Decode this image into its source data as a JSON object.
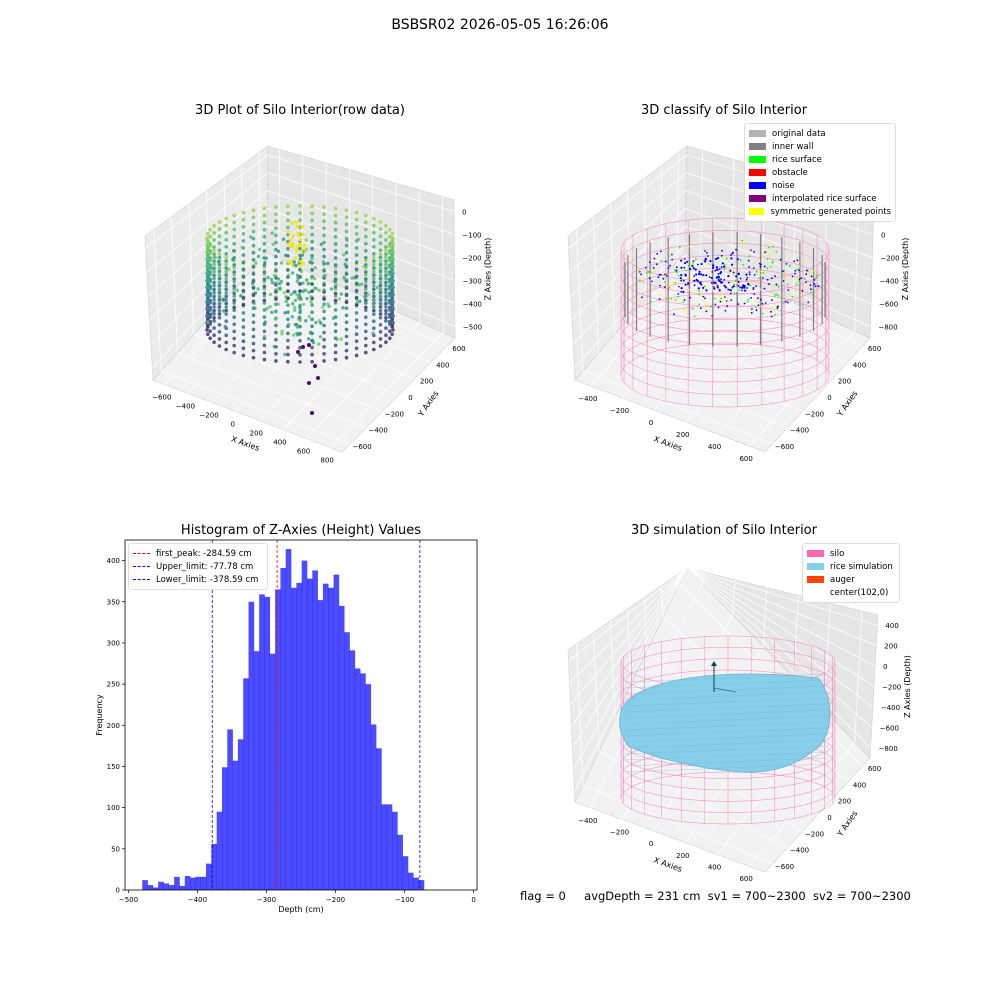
{
  "figure": {
    "suptitle": "BSBSR02 2026-05-05 16:26:06"
  },
  "chart_data": [
    {
      "type": "scatter",
      "title": "3D Plot of Silo Interior(row data)",
      "xlabel": "X Axies",
      "ylabel": "Y Axies",
      "zlabel": "Z Axies (Depth)",
      "x_ticks": [
        "−600",
        "−400",
        "−200",
        "0",
        "200",
        "400",
        "600",
        "800"
      ],
      "y_ticks": [
        "600",
        "400",
        "200",
        "0",
        "−200",
        "−400",
        "−600"
      ],
      "z_ticks": [
        "0",
        "−100",
        "−200",
        "−300",
        "−400",
        "−500"
      ],
      "xlim": [
        -600,
        800
      ],
      "ylim": [
        -650,
        650
      ],
      "zlim": [
        -520,
        20
      ],
      "colormap": "viridis"
    },
    {
      "type": "scatter",
      "title": "3D classify of Silo Interior",
      "xlabel": "X Axies",
      "ylabel": "Y Axies",
      "zlabel": "Z Axies (Depth)",
      "x_ticks": [
        "−400",
        "−200",
        "0",
        "200",
        "400",
        "600"
      ],
      "y_ticks": [
        "600",
        "400",
        "200",
        "0",
        "−200",
        "−400",
        "−600"
      ],
      "z_ticks": [
        "200",
        "0",
        "−200",
        "−400",
        "−600",
        "−800"
      ],
      "legend": [
        {
          "label": "original data",
          "color": "#b3b3b3"
        },
        {
          "label": "inner wall",
          "color": "#808080"
        },
        {
          "label": "rice surface",
          "color": "#00ff00"
        },
        {
          "label": "obstacle",
          "color": "#ff0000"
        },
        {
          "label": "noise",
          "color": "#0000ff"
        },
        {
          "label": "interpolated rice surface",
          "color": "#800080"
        },
        {
          "label": "symmetric generated points",
          "color": "#ffff00"
        }
      ],
      "silo_wire_color": "#ff69b4"
    },
    {
      "type": "bar",
      "title": "Histogram of Z-Axies (Height) Values",
      "xlabel": "Depth (cm)",
      "ylabel": "Frequency",
      "xlim": [
        -505,
        5
      ],
      "ylim": [
        0,
        425
      ],
      "x_ticks": [
        -500,
        -400,
        -300,
        -200,
        -100,
        0
      ],
      "y_ticks": [
        0,
        50,
        100,
        150,
        200,
        250,
        300,
        350,
        400
      ],
      "bin_start": -480,
      "bin_width": 7.7,
      "values": [
        12,
        6,
        3,
        10,
        8,
        6,
        16,
        5,
        17,
        15,
        16,
        16,
        32,
        56,
        95,
        149,
        195,
        157,
        183,
        257,
        350,
        290,
        359,
        356,
        287,
        365,
        391,
        414,
        367,
        373,
        400,
        378,
        388,
        352,
        372,
        367,
        383,
        345,
        313,
        291,
        269,
        263,
        250,
        201,
        172,
        104,
        104,
        95,
        67,
        41,
        21,
        15,
        12
      ],
      "bar_color": "#0000ff",
      "lines": [
        {
          "label": "first_peak: -284.59 cm",
          "value": -284.59,
          "color": "#ff0000"
        },
        {
          "label": "Upper_limit: -77.78 cm",
          "value": -77.78,
          "color": "#0000ff"
        },
        {
          "label": "Lower_limit: -378.59 cm",
          "value": -378.59,
          "color": "#0000ff"
        }
      ]
    },
    {
      "type": "area",
      "title": "3D simulation of Silo Interior",
      "xlabel": "X Axies",
      "ylabel": "Y Axies",
      "zlabel": "Z Axies (Depth)",
      "x_ticks": [
        "−400",
        "−200",
        "0",
        "200",
        "400",
        "600"
      ],
      "y_ticks": [
        "600",
        "400",
        "200",
        "0",
        "−200",
        "−400",
        "−600"
      ],
      "z_ticks": [
        "400",
        "200",
        "0",
        "−200",
        "−400",
        "−600",
        "−800"
      ],
      "legend": [
        {
          "label": "silo",
          "color": "#ff69b4"
        },
        {
          "label": "rice simulation",
          "color": "#87ceeb"
        },
        {
          "label": "auger",
          "color": "#ff4500"
        },
        {
          "label": "center(102,0)",
          "color": "#ffffff"
        }
      ]
    }
  ],
  "footer": {
    "flag": "flag = 0",
    "avg_depth": "avgDepth = 231 cm",
    "sv1": "sv1 = 700~2300",
    "sv2": "sv2 = 700~2300"
  }
}
